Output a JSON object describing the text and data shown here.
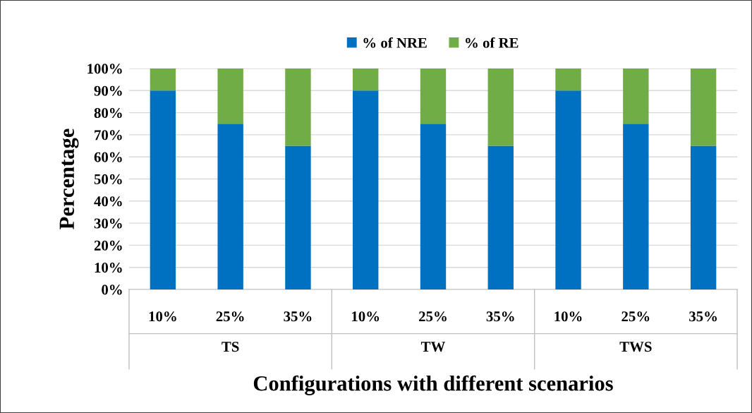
{
  "chart_data": {
    "type": "bar",
    "stacked": true,
    "xlabel": "Configurations with different scenarios",
    "ylabel": "Percentage",
    "categories": [
      "10%",
      "25%",
      "35%",
      "10%",
      "25%",
      "35%",
      "10%",
      "25%",
      "35%"
    ],
    "annotations": [
      "TS",
      "TW",
      "TWS"
    ],
    "series": [
      {
        "name": "% of NRE",
        "color": "#0070c0",
        "values": [
          90,
          75,
          65,
          90,
          75,
          65,
          90,
          75,
          65
        ]
      },
      {
        "name": "% of RE",
        "color": "#70ad47",
        "values": [
          10,
          25,
          35,
          10,
          25,
          35,
          10,
          25,
          35
        ]
      }
    ],
    "ylim": [
      0,
      100
    ],
    "yticks": [
      {
        "value": 0,
        "label": "0%"
      },
      {
        "value": 10,
        "label": "10%"
      },
      {
        "value": 20,
        "label": "20%"
      },
      {
        "value": 30,
        "label": "30%"
      },
      {
        "value": 40,
        "label": "40%"
      },
      {
        "value": 50,
        "label": "50%"
      },
      {
        "value": 60,
        "label": "60%"
      },
      {
        "value": 70,
        "label": "70%"
      },
      {
        "value": 80,
        "label": "80%"
      },
      {
        "value": 90,
        "label": "90%"
      },
      {
        "value": 100,
        "label": "100%"
      }
    ],
    "grid": "y",
    "legend": "top"
  }
}
